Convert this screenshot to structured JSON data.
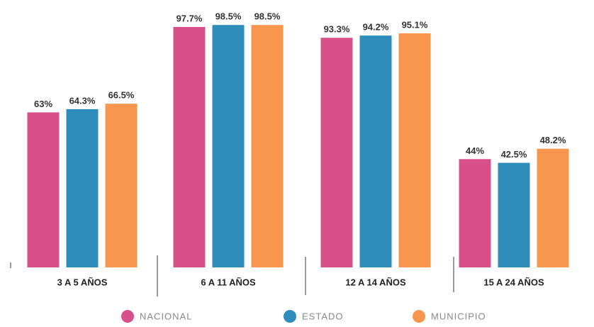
{
  "chart_data": {
    "type": "bar",
    "categories": [
      "3 A 5 AÑOS",
      "6 A 11 AÑOS",
      "12 A 14 AÑOS",
      "15 A 24 AÑOS"
    ],
    "series": [
      {
        "name": "NACIONAL",
        "color": "#d8508a",
        "values": [
          63,
          97.7,
          93.3,
          44
        ],
        "value_labels": [
          "63%",
          "97.7%",
          "93.3%",
          "44%"
        ]
      },
      {
        "name": "ESTADO",
        "color": "#2f8dbb",
        "values": [
          64.3,
          98.5,
          94.2,
          42.5
        ],
        "value_labels": [
          "64.3%",
          "98.5%",
          "94.2%",
          "42.5%"
        ]
      },
      {
        "name": "MUNICIPIO",
        "color": "#f7964c",
        "values": [
          66.5,
          98.5,
          95.1,
          48.2
        ],
        "value_labels": [
          "66.5%",
          "98.5%",
          "95.1%",
          "48.2%"
        ]
      }
    ],
    "ylim": [
      0,
      100
    ]
  }
}
